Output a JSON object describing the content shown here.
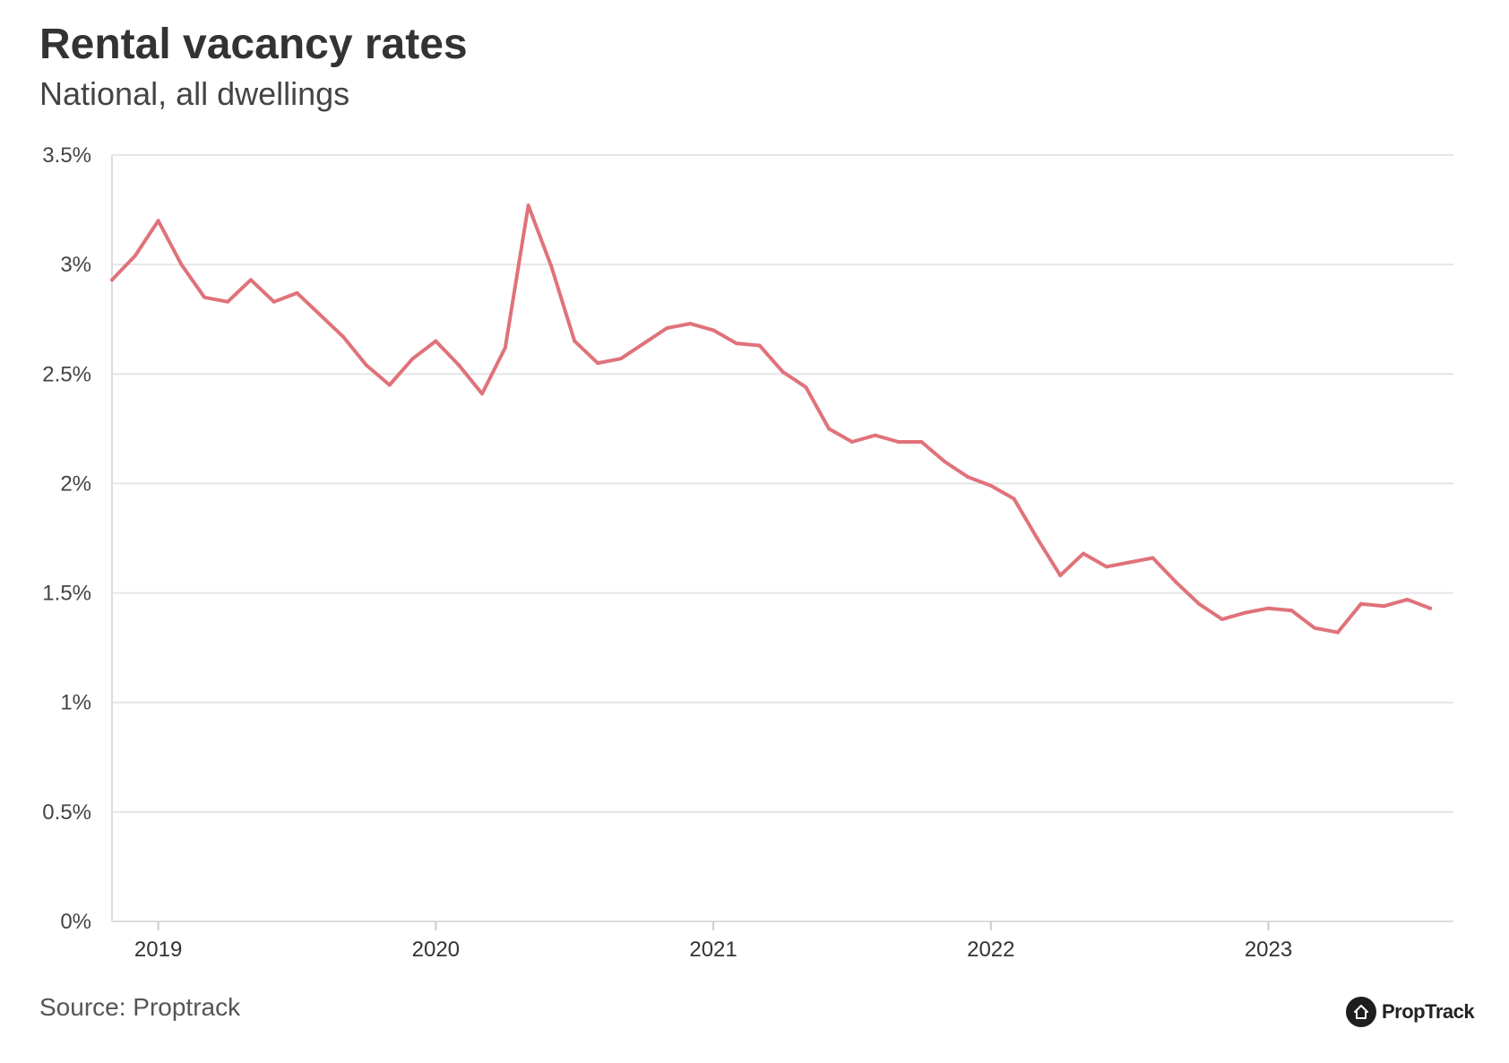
{
  "title": "Rental vacancy rates",
  "subtitle": "National, all dwellings",
  "source": "Source: Proptrack",
  "logo": {
    "text": "PropTrack",
    "icon": "house-icon"
  },
  "colors": {
    "line": "#e0727a",
    "grid": "#e6e6e6",
    "axis": "#dddddd"
  },
  "chart_data": {
    "type": "line",
    "title": "Rental vacancy rates",
    "subtitle": "National, all dwellings",
    "xlabel": "",
    "ylabel": "",
    "ylim": [
      0,
      3.5
    ],
    "xlim": [
      "2018-11",
      "2023-09"
    ],
    "grid": true,
    "y_ticks": [
      {
        "value": 0,
        "label": "0%"
      },
      {
        "value": 0.5,
        "label": "0.5%"
      },
      {
        "value": 1,
        "label": "1%"
      },
      {
        "value": 1.5,
        "label": "1.5%"
      },
      {
        "value": 2,
        "label": "2%"
      },
      {
        "value": 2.5,
        "label": "2.5%"
      },
      {
        "value": 3,
        "label": "3%"
      },
      {
        "value": 3.5,
        "label": "3.5%"
      }
    ],
    "x_ticks": [
      {
        "value": "2019-01",
        "label": "2019"
      },
      {
        "value": "2020-01",
        "label": "2020"
      },
      {
        "value": "2021-01",
        "label": "2021"
      },
      {
        "value": "2022-01",
        "label": "2022"
      },
      {
        "value": "2023-01",
        "label": "2023"
      }
    ],
    "series": [
      {
        "name": "",
        "color": "#e0727a",
        "x": [
          "2018-11",
          "2018-12",
          "2019-01",
          "2019-02",
          "2019-03",
          "2019-04",
          "2019-05",
          "2019-06",
          "2019-07",
          "2019-08",
          "2019-09",
          "2019-10",
          "2019-11",
          "2019-12",
          "2020-01",
          "2020-02",
          "2020-03",
          "2020-04",
          "2020-05",
          "2020-06",
          "2020-07",
          "2020-08",
          "2020-09",
          "2020-10",
          "2020-11",
          "2020-12",
          "2021-01",
          "2021-02",
          "2021-03",
          "2021-04",
          "2021-05",
          "2021-06",
          "2021-07",
          "2021-08",
          "2021-09",
          "2021-10",
          "2021-11",
          "2021-12",
          "2022-01",
          "2022-02",
          "2022-03",
          "2022-04",
          "2022-05",
          "2022-06",
          "2022-07",
          "2022-08",
          "2022-09",
          "2022-10",
          "2022-11",
          "2022-12",
          "2023-01",
          "2023-02",
          "2023-03",
          "2023-04",
          "2023-05",
          "2023-06",
          "2023-07",
          "2023-08"
        ],
        "values": [
          2.93,
          3.04,
          3.2,
          3.0,
          2.85,
          2.83,
          2.93,
          2.83,
          2.87,
          2.77,
          2.67,
          2.54,
          2.45,
          2.57,
          2.65,
          2.54,
          2.41,
          2.62,
          3.27,
          2.99,
          2.65,
          2.55,
          2.57,
          2.64,
          2.71,
          2.73,
          2.7,
          2.64,
          2.63,
          2.51,
          2.44,
          2.25,
          2.19,
          2.22,
          2.19,
          2.19,
          2.1,
          2.03,
          1.99,
          1.93,
          1.75,
          1.58,
          1.68,
          1.62,
          1.64,
          1.66,
          1.55,
          1.45,
          1.38,
          1.41,
          1.43,
          1.42,
          1.34,
          1.32,
          1.45,
          1.44,
          1.47,
          1.43
        ]
      }
    ]
  }
}
